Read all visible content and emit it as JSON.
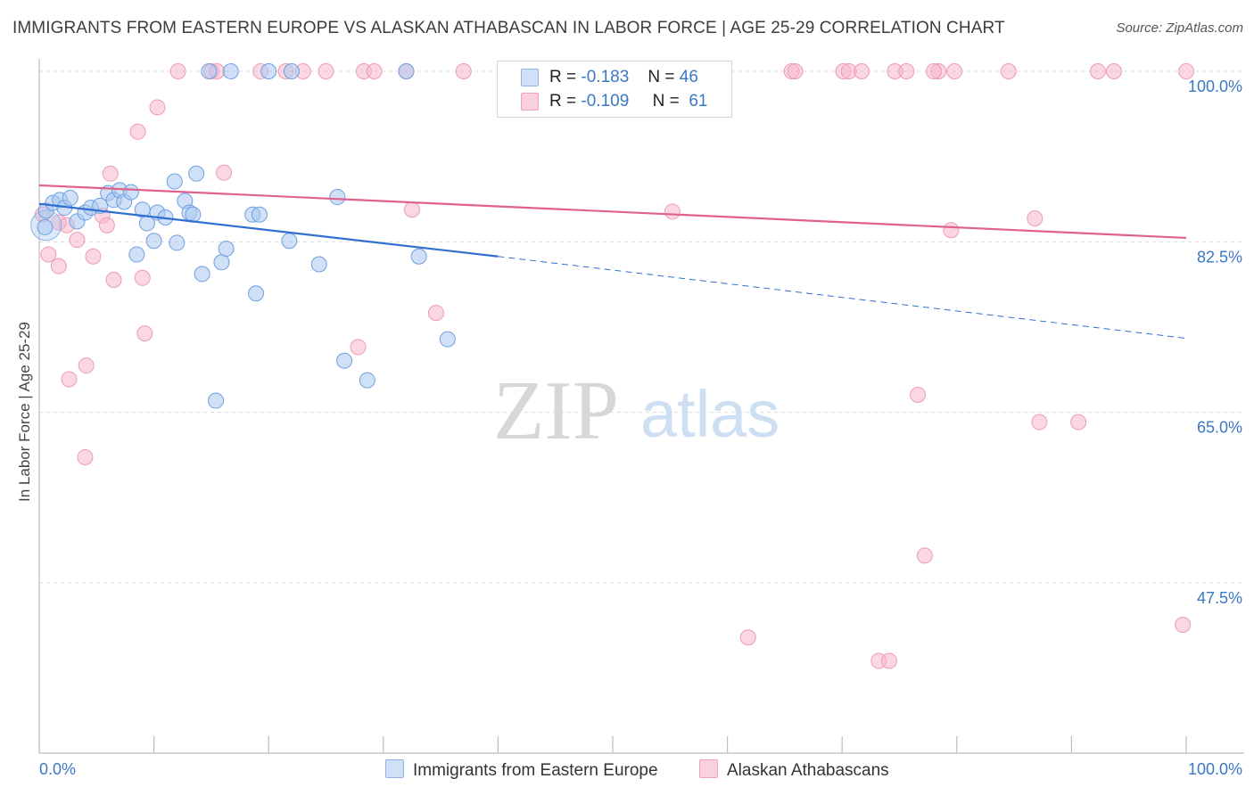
{
  "title": "IMMIGRANTS FROM EASTERN EUROPE VS ALASKAN ATHABASCAN IN LABOR FORCE | AGE 25-29 CORRELATION CHART",
  "source": "Source: ZipAtlas.com",
  "watermark": {
    "zip": "ZIP",
    "atlas": "atlas"
  },
  "legend": {
    "rows": [
      {
        "r_label": "R =",
        "r_value": "-0.183",
        "n_label": "N =",
        "n_value": "46",
        "color": "#a9c8f0"
      },
      {
        "r_label": "R =",
        "r_value": "-0.109",
        "n_label": "N =",
        "n_value": "61",
        "color": "#f6b7ca"
      }
    ]
  },
  "bottom_legend": {
    "series1": "Immigrants from Eastern Europe",
    "series2": "Alaskan Athabascans"
  },
  "chart_data": {
    "type": "scatter",
    "title": "IMMIGRANTS FROM EASTERN EUROPE VS ALASKAN ATHABASCAN IN LABOR FORCE | AGE 25-29 CORRELATION CHART",
    "xlabel": "",
    "ylabel": "In Labor Force | Age 25-29",
    "xlim": [
      0,
      100
    ],
    "ylim": [
      30,
      102
    ],
    "x_tick_labels": [
      "0.0%",
      "100.0%"
    ],
    "y_ticks": [
      47.5,
      65.0,
      82.5,
      100.0
    ],
    "y_tick_labels": [
      "47.5%",
      "65.0%",
      "82.5%",
      "100.0%"
    ],
    "grid": "horizontal dashed",
    "legend_position": "top-center",
    "colors": {
      "series1_fill": "#a9c8f0",
      "series1_line": "#2f6fd0",
      "series2_fill": "#f6b7ca",
      "series2_line": "#e0608e",
      "axis_text": "#3b78c3"
    },
    "series": [
      {
        "name": "Immigrants from Eastern Europe",
        "R": -0.183,
        "N": 46,
        "trend": {
          "x0": 0,
          "y0": 86.4,
          "x1": 40,
          "y1": 81.0,
          "dashed_to_x": 100,
          "dashed_to_y": 72.6
        },
        "points": [
          [
            0.5,
            84.0
          ],
          [
            0.6,
            85.7
          ],
          [
            1.2,
            86.5
          ],
          [
            1.8,
            86.8
          ],
          [
            2.2,
            86.0
          ],
          [
            2.7,
            87.0
          ],
          [
            3.3,
            84.6
          ],
          [
            4.0,
            85.5
          ],
          [
            4.5,
            86.0
          ],
          [
            5.3,
            86.2
          ],
          [
            6.0,
            87.5
          ],
          [
            6.5,
            86.8
          ],
          [
            7.0,
            87.8
          ],
          [
            7.4,
            86.6
          ],
          [
            8.0,
            87.6
          ],
          [
            8.5,
            81.2
          ],
          [
            9.0,
            85.8
          ],
          [
            9.4,
            84.4
          ],
          [
            10.0,
            82.6
          ],
          [
            10.3,
            85.5
          ],
          [
            11.0,
            85.0
          ],
          [
            11.8,
            88.7
          ],
          [
            12.0,
            82.4
          ],
          [
            12.7,
            86.7
          ],
          [
            13.1,
            85.5
          ],
          [
            13.4,
            85.3
          ],
          [
            13.7,
            89.5
          ],
          [
            14.2,
            79.2
          ],
          [
            15.4,
            66.2
          ],
          [
            15.9,
            80.4
          ],
          [
            16.3,
            81.8
          ],
          [
            16.7,
            100.0
          ],
          [
            18.6,
            85.3
          ],
          [
            18.9,
            77.2
          ],
          [
            19.2,
            85.3
          ],
          [
            21.8,
            82.6
          ],
          [
            24.4,
            80.2
          ],
          [
            26.6,
            70.3
          ],
          [
            28.6,
            68.3
          ],
          [
            33.1,
            81.0
          ],
          [
            35.6,
            72.5
          ],
          [
            20.0,
            100.0
          ],
          [
            14.8,
            100.0
          ],
          [
            22.0,
            100.0
          ],
          [
            32.0,
            100.0
          ],
          [
            26.0,
            87.1
          ]
        ]
      },
      {
        "name": "Alaskan Athabascans",
        "R": -0.109,
        "N": 61,
        "trend": {
          "x0": 0,
          "y0": 88.3,
          "x1": 100,
          "y1": 82.9
        },
        "points": [
          [
            0.3,
            85.3
          ],
          [
            0.8,
            81.2
          ],
          [
            1.7,
            84.5
          ],
          [
            1.7,
            80.0
          ],
          [
            2.4,
            84.2
          ],
          [
            2.6,
            68.4
          ],
          [
            3.3,
            82.7
          ],
          [
            4.0,
            60.4
          ],
          [
            4.1,
            69.8
          ],
          [
            4.7,
            81.0
          ],
          [
            5.5,
            85.2
          ],
          [
            5.9,
            84.2
          ],
          [
            6.2,
            89.5
          ],
          [
            6.5,
            78.6
          ],
          [
            8.6,
            93.8
          ],
          [
            9.0,
            78.8
          ],
          [
            9.2,
            73.1
          ],
          [
            10.3,
            96.3
          ],
          [
            12.1,
            100.0
          ],
          [
            15.0,
            100.0
          ],
          [
            15.5,
            100.0
          ],
          [
            16.1,
            89.6
          ],
          [
            19.3,
            100.0
          ],
          [
            21.5,
            100.0
          ],
          [
            23.0,
            100.0
          ],
          [
            25.0,
            100.0
          ],
          [
            27.8,
            71.7
          ],
          [
            28.3,
            100.0
          ],
          [
            29.2,
            100.0
          ],
          [
            32.0,
            100.0
          ],
          [
            32.5,
            85.8
          ],
          [
            34.6,
            75.2
          ],
          [
            37.0,
            100.0
          ],
          [
            46.3,
            100.0
          ],
          [
            47.9,
            100.0
          ],
          [
            55.2,
            85.6
          ],
          [
            57.6,
            100.0
          ],
          [
            61.8,
            41.9
          ],
          [
            65.6,
            100.0
          ],
          [
            65.9,
            100.0
          ],
          [
            70.1,
            100.0
          ],
          [
            70.6,
            100.0
          ],
          [
            71.7,
            100.0
          ],
          [
            73.2,
            39.5
          ],
          [
            74.1,
            39.5
          ],
          [
            74.6,
            100.0
          ],
          [
            75.6,
            100.0
          ],
          [
            76.6,
            66.8
          ],
          [
            77.2,
            50.3
          ],
          [
            78.4,
            100.0
          ],
          [
            78.0,
            100.0
          ],
          [
            79.5,
            83.7
          ],
          [
            79.8,
            100.0
          ],
          [
            84.5,
            100.0
          ],
          [
            86.8,
            84.9
          ],
          [
            87.2,
            64.0
          ],
          [
            90.6,
            64.0
          ],
          [
            92.3,
            100.0
          ],
          [
            93.7,
            100.0
          ],
          [
            99.7,
            43.2
          ],
          [
            100.0,
            100.0
          ]
        ]
      }
    ]
  }
}
